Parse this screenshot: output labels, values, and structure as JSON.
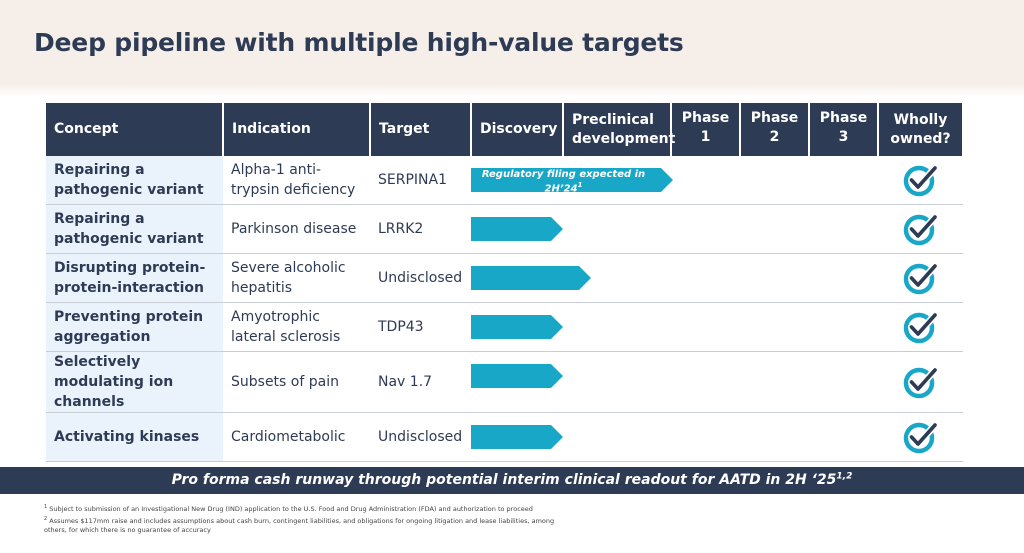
{
  "page": {
    "title": "Deep pipeline with multiple high-value targets"
  },
  "colors": {
    "navy": "#2e3b55",
    "arrow": "#19a7c8",
    "concept_bg": "#eaf3fb"
  },
  "table": {
    "headers": {
      "concept": "Concept",
      "indication": "Indication",
      "target": "Target",
      "discovery": "Discovery",
      "preclinical": "Preclinical development",
      "phase1": "Phase 1",
      "phase2": "Phase 2",
      "phase3": "Phase 3",
      "owned": "Wholly owned?"
    },
    "stages": [
      "Discovery",
      "Preclinical development",
      "Phase 1",
      "Phase 2",
      "Phase 3"
    ],
    "rows": [
      {
        "concept": "Repairing a pathogenic variant",
        "indication": "Alpha-1 anti-trypsin deficiency",
        "target": "SERPINA1",
        "progress_stages": 2.0,
        "bar_note": "Regulatory filing expected in 2H’24",
        "bar_note_sup": "1",
        "wholly_owned": "check-icon"
      },
      {
        "concept": "Repairing a pathogenic variant",
        "indication": "Parkinson disease",
        "target": "LRRK2",
        "progress_stages": 1.0,
        "wholly_owned": "check-icon"
      },
      {
        "concept": "Disrupting protein-protein-interaction",
        "indication": "Severe alcoholic hepatitis",
        "target": "Undisclosed",
        "progress_stages": 1.3,
        "wholly_owned": "check-icon"
      },
      {
        "concept": "Preventing protein aggregation",
        "indication": "Amyotrophic lateral sclerosis",
        "target": "TDP43",
        "progress_stages": 1.0,
        "wholly_owned": "check-icon"
      },
      {
        "concept": "Selectively modulating ion channels",
        "indication": "Subsets of pain",
        "target": "Nav 1.7",
        "progress_stages": 1.0,
        "wholly_owned": "check-icon"
      },
      {
        "concept": "Activating kinases",
        "indication": "Cardiometabolic",
        "target": "Undisclosed",
        "progress_stages": 1.0,
        "wholly_owned": "check-icon"
      }
    ]
  },
  "banner": {
    "text": "Pro forma cash runway through potential interim clinical readout for AATD in 2H ‘25",
    "sup": "1,2"
  },
  "footnotes": {
    "one_num": "1",
    "one": "Subject to submission of an Investigational New Drug (IND) application to the U.S. Food and Drug Administration (FDA) and authorization to proceed",
    "two_num": "2",
    "two": "Assumes $117mm raise and includes assumptions about cash burn, contingent liabilities, and obligations for ongoing litigation and lease liabilities, among others, for which there is no guarantee of accuracy"
  }
}
